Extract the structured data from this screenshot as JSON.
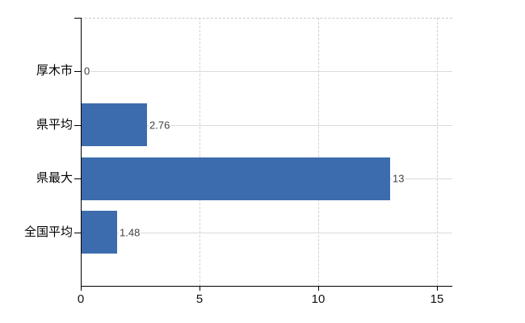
{
  "chart_data": {
    "type": "bar",
    "orientation": "horizontal",
    "title": "",
    "categories": [
      "厚木市",
      "県平均",
      "県最大",
      "全国平均"
    ],
    "values": [
      0,
      2.76,
      13,
      1.48
    ],
    "data_labels": [
      "0",
      "2.76",
      "13",
      "1.48"
    ],
    "xticks": [
      {
        "value": 0,
        "label": "0"
      },
      {
        "value": 5,
        "label": "5"
      },
      {
        "value": 10,
        "label": "10"
      },
      {
        "value": 15,
        "label": "15"
      }
    ],
    "xlim": [
      0,
      15.65
    ],
    "grid": true,
    "legend": "none",
    "colors": {
      "bar": "#3c6cad",
      "axis": "#000000",
      "h_gridline": "#d6ded6",
      "v_gridline": "#d3ced5",
      "top_border": "#c9c9c9",
      "category_label": "#000000",
      "data_label": "#3f3f3f",
      "tick_label": "#111111",
      "background": "#ffffff"
    }
  }
}
